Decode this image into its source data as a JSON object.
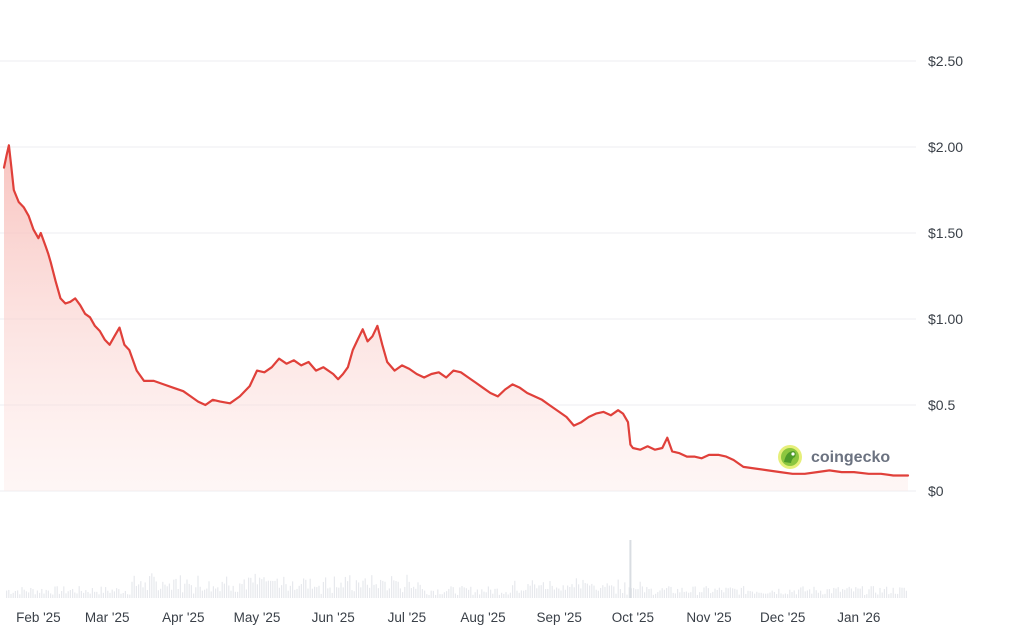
{
  "chart_data": {
    "type": "area",
    "y_tick_labels": [
      "$0",
      "$0.5",
      "$1.00",
      "$1.50",
      "$2.00",
      "$2.50"
    ],
    "y_tick_values": [
      0,
      0.5,
      1.0,
      1.5,
      2.0,
      2.5
    ],
    "ylim": [
      0,
      2.5
    ],
    "x_tick_labels": [
      "Feb '25",
      "Mar '25",
      "Apr '25",
      "May '25",
      "Jun '25",
      "Jul '25",
      "Aug '25",
      "Sep '25",
      "Oct '25",
      "Nov '25",
      "Dec '25",
      "Jan '26"
    ],
    "x_tick_dates": [
      "2025-02-01",
      "2025-03-01",
      "2025-04-01",
      "2025-05-01",
      "2025-06-01",
      "2025-07-01",
      "2025-08-01",
      "2025-09-01",
      "2025-10-01",
      "2025-11-01",
      "2025-12-01",
      "2026-01-01"
    ],
    "xlim": [
      "2025-01-18",
      "2026-01-21"
    ],
    "grid": true,
    "line_color": "#e0403a",
    "fill_color": "#f7b9b4",
    "series": [
      {
        "x": [
          "2025-01-18",
          "2025-01-19",
          "2025-01-20",
          "2025-01-21",
          "2025-01-22",
          "2025-01-24",
          "2025-01-26",
          "2025-01-28",
          "2025-01-30",
          "2025-02-01",
          "2025-02-02",
          "2025-02-04",
          "2025-02-05",
          "2025-02-06",
          "2025-02-08",
          "2025-02-10",
          "2025-02-12",
          "2025-02-14",
          "2025-02-16",
          "2025-02-18",
          "2025-02-20",
          "2025-02-22",
          "2025-02-24",
          "2025-02-26",
          "2025-02-28",
          "2025-03-02",
          "2025-03-04",
          "2025-03-06",
          "2025-03-08",
          "2025-03-10",
          "2025-03-13",
          "2025-03-16",
          "2025-03-20",
          "2025-03-24",
          "2025-03-28",
          "2025-04-01",
          "2025-04-04",
          "2025-04-07",
          "2025-04-10",
          "2025-04-13",
          "2025-04-16",
          "2025-04-20",
          "2025-04-24",
          "2025-04-28",
          "2025-05-01",
          "2025-05-04",
          "2025-05-07",
          "2025-05-10",
          "2025-05-13",
          "2025-05-16",
          "2025-05-19",
          "2025-05-22",
          "2025-05-25",
          "2025-05-28",
          "2025-06-01",
          "2025-06-03",
          "2025-06-05",
          "2025-06-07",
          "2025-06-09",
          "2025-06-11",
          "2025-06-13",
          "2025-06-15",
          "2025-06-17",
          "2025-06-19",
          "2025-06-21",
          "2025-06-23",
          "2025-06-26",
          "2025-06-29",
          "2025-07-02",
          "2025-07-05",
          "2025-07-08",
          "2025-07-11",
          "2025-07-14",
          "2025-07-17",
          "2025-07-20",
          "2025-07-23",
          "2025-07-26",
          "2025-07-29",
          "2025-08-01",
          "2025-08-04",
          "2025-08-07",
          "2025-08-10",
          "2025-08-13",
          "2025-08-16",
          "2025-08-19",
          "2025-08-22",
          "2025-08-25",
          "2025-08-28",
          "2025-09-01",
          "2025-09-04",
          "2025-09-07",
          "2025-09-10",
          "2025-09-13",
          "2025-09-16",
          "2025-09-19",
          "2025-09-22",
          "2025-09-25",
          "2025-09-27",
          "2025-09-29",
          "2025-09-30",
          "2025-10-01",
          "2025-10-04",
          "2025-10-07",
          "2025-10-10",
          "2025-10-13",
          "2025-10-15",
          "2025-10-17",
          "2025-10-20",
          "2025-10-23",
          "2025-10-26",
          "2025-10-29",
          "2025-11-01",
          "2025-11-05",
          "2025-11-08",
          "2025-11-11",
          "2025-11-15",
          "2025-11-20",
          "2025-11-25",
          "2025-11-30",
          "2025-12-05",
          "2025-12-10",
          "2025-12-15",
          "2025-12-20",
          "2025-12-25",
          "2025-12-30",
          "2026-01-05",
          "2026-01-10",
          "2026-01-15",
          "2026-01-21"
        ],
        "y": [
          1.88,
          1.95,
          2.01,
          1.88,
          1.75,
          1.68,
          1.65,
          1.6,
          1.52,
          1.47,
          1.5,
          1.42,
          1.38,
          1.33,
          1.22,
          1.12,
          1.09,
          1.1,
          1.12,
          1.08,
          1.03,
          1.01,
          0.96,
          0.93,
          0.88,
          0.85,
          0.9,
          0.95,
          0.85,
          0.82,
          0.7,
          0.64,
          0.64,
          0.62,
          0.6,
          0.58,
          0.55,
          0.52,
          0.5,
          0.53,
          0.52,
          0.51,
          0.55,
          0.61,
          0.7,
          0.69,
          0.72,
          0.77,
          0.74,
          0.76,
          0.73,
          0.75,
          0.7,
          0.72,
          0.68,
          0.65,
          0.68,
          0.72,
          0.82,
          0.88,
          0.94,
          0.87,
          0.9,
          0.96,
          0.85,
          0.75,
          0.7,
          0.73,
          0.71,
          0.68,
          0.66,
          0.68,
          0.69,
          0.66,
          0.7,
          0.69,
          0.66,
          0.63,
          0.6,
          0.57,
          0.55,
          0.59,
          0.62,
          0.6,
          0.57,
          0.55,
          0.53,
          0.5,
          0.46,
          0.43,
          0.38,
          0.4,
          0.43,
          0.45,
          0.46,
          0.44,
          0.47,
          0.45,
          0.4,
          0.27,
          0.25,
          0.24,
          0.26,
          0.24,
          0.25,
          0.31,
          0.23,
          0.22,
          0.2,
          0.2,
          0.19,
          0.21,
          0.21,
          0.2,
          0.18,
          0.14,
          0.13,
          0.12,
          0.11,
          0.1,
          0.1,
          0.11,
          0.12,
          0.11,
          0.11,
          0.1,
          0.1,
          0.09,
          0.09
        ]
      }
    ],
    "volume_note": "faint volume bars along the bottom",
    "volume": {
      "spike_date": "2025-09-30",
      "spike_relative": 1.0
    }
  },
  "watermark": {
    "text": "coingecko",
    "icon": "gecko-icon"
  }
}
